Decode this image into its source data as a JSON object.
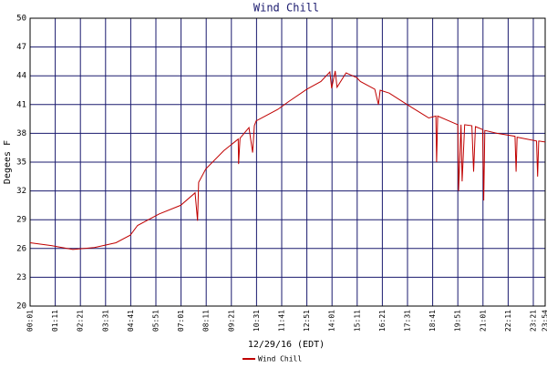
{
  "chart_data": {
    "type": "line",
    "title": "Wind Chill",
    "x_label": "12/29/16 (EDT)",
    "y_label": "Degees F",
    "x": [
      "00:01",
      "01:00",
      "02:00",
      "03:00",
      "04:00",
      "04:40",
      "05:00",
      "06:00",
      "07:00",
      "07:40",
      "07:47",
      "07:50",
      "08:10",
      "09:00",
      "09:40",
      "09:41",
      "09:45",
      "10:10",
      "10:20",
      "10:25",
      "10:30",
      "11:30",
      "12:00",
      "12:51",
      "13:30",
      "13:55",
      "14:00",
      "14:10",
      "14:15",
      "14:40",
      "15:10",
      "15:20",
      "16:00",
      "16:10",
      "16:15",
      "16:40",
      "17:30",
      "18:30",
      "18:50",
      "18:52",
      "18:55",
      "19:51",
      "19:53",
      "20:00",
      "20:03",
      "20:10",
      "20:30",
      "20:35",
      "20:40",
      "21:00",
      "21:03",
      "21:06",
      "21:40",
      "22:30",
      "22:33",
      "22:36",
      "23:30",
      "23:33",
      "23:36",
      "23:54"
    ],
    "series": [
      {
        "name": "Wind Chill",
        "color": "#c00000",
        "values": [
          26.6,
          26.3,
          25.9,
          26.1,
          26.6,
          27.4,
          28.4,
          29.6,
          30.5,
          31.8,
          28.9,
          32.9,
          34.3,
          36.2,
          37.4,
          34.8,
          37.5,
          38.6,
          36,
          38.8,
          39.3,
          40.5,
          41.3,
          42.6,
          43.4,
          44.4,
          42.7,
          44.5,
          42.8,
          44.3,
          43.8,
          43.4,
          42.6,
          41,
          42.5,
          42.2,
          41,
          39.6,
          39.8,
          35,
          39.8,
          38.9,
          32,
          38.9,
          33,
          38.9,
          38.8,
          34,
          38.7,
          38.4,
          31,
          38.3,
          38,
          37.7,
          34,
          37.6,
          37.2,
          33.5,
          37.2,
          37.1
        ]
      }
    ],
    "xlim": [
      "00:01",
      "23:54"
    ],
    "xticks": [
      "00:01",
      "01:11",
      "02:21",
      "03:31",
      "04:41",
      "05:51",
      "07:01",
      "08:11",
      "09:21",
      "10:31",
      "11:41",
      "12:51",
      "14:01",
      "15:11",
      "16:21",
      "17:31",
      "18:41",
      "19:51",
      "21:01",
      "22:11",
      "23:21",
      "23:54"
    ],
    "ylim": [
      20,
      50
    ],
    "yticks": [
      20,
      23,
      26,
      29,
      32,
      35,
      38,
      41,
      44,
      47,
      50
    ],
    "grid": true
  }
}
